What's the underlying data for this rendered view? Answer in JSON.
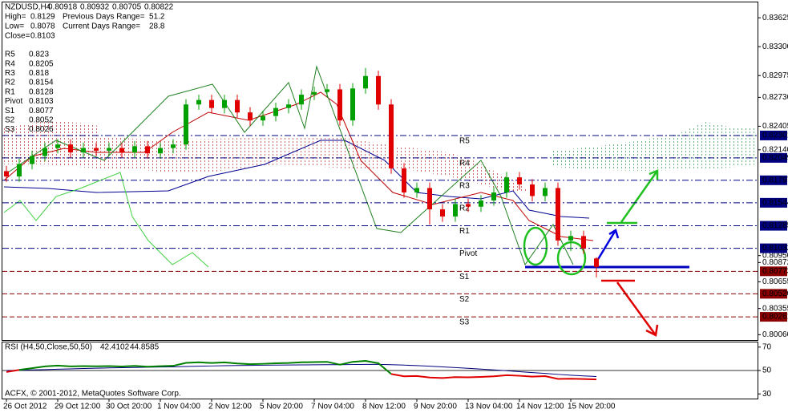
{
  "chart_data": {
    "type": "candlestick",
    "symbol": "NZDUSD,H4",
    "info": [
      {
        "label": "High=",
        "value": 0.8129
      },
      {
        "label": "Low=",
        "value": 0.8078
      },
      {
        "label": "Close=",
        "value": 0.8103
      }
    ],
    "ranges": [
      {
        "label": "Previous Days Range=",
        "value": 51.2
      },
      {
        "label": "Current Days Range=",
        "value": 28.8
      }
    ],
    "categories": [
      "26 Oct 2012",
      null,
      null,
      null,
      "29 Oct 12:00",
      null,
      null,
      null,
      "30 Oct 20:00",
      null,
      null,
      null,
      "1 Nov 04:00",
      null,
      null,
      null,
      "2 Nov 12:00",
      null,
      null,
      null,
      "5 Nov 20:00",
      null,
      null,
      null,
      "7 Nov 04:00",
      null,
      null,
      null,
      "8 Nov 12:00",
      null,
      null,
      null,
      "9 Nov 20:00",
      null,
      null,
      null,
      "13 Nov 04:00",
      null,
      null,
      null,
      "14 Nov 12:00",
      null,
      null,
      null,
      "15 Nov 20:00",
      null,
      null
    ],
    "open": [
      0.819,
      0.8184,
      0.8198,
      0.8207,
      0.8216,
      0.822,
      0.8211,
      0.8216,
      0.8213,
      0.8216,
      0.8211,
      0.8218,
      0.821,
      0.8216,
      0.822,
      0.8265,
      0.827,
      0.8261,
      0.827,
      0.8256,
      0.8247,
      0.8252,
      0.8261,
      0.8265,
      0.8276,
      0.8279,
      0.8282,
      0.8247,
      0.8283,
      0.8297,
      0.8265,
      0.8193,
      0.8166,
      0.8171,
      0.8147,
      0.8139,
      0.8153,
      0.815,
      0.8157,
      0.8166,
      0.8183,
      0.8175,
      0.8162,
      0.8171,
      0.8112,
      0.8117,
      0.80918
    ],
    "high": [
      0.8196,
      0.8204,
      0.8213,
      0.8222,
      0.8226,
      0.8226,
      0.8222,
      0.8222,
      0.8222,
      0.8222,
      0.8224,
      0.8224,
      0.8222,
      0.8226,
      0.8271,
      0.8276,
      0.8276,
      0.8276,
      0.8276,
      0.8262,
      0.8258,
      0.8267,
      0.8271,
      0.8282,
      0.8285,
      0.8288,
      0.8288,
      0.8289,
      0.8306,
      0.8303,
      0.8271,
      0.8199,
      0.8177,
      0.8177,
      0.8153,
      0.8159,
      0.8159,
      0.8163,
      0.8172,
      0.8189,
      0.8189,
      0.8181,
      0.8177,
      0.8177,
      0.8123,
      0.8123,
      0.80932
    ],
    "low": [
      0.8178,
      0.8178,
      0.8192,
      0.8201,
      0.821,
      0.8205,
      0.8205,
      0.8207,
      0.8207,
      0.8205,
      0.8205,
      0.8204,
      0.8204,
      0.821,
      0.8214,
      0.8259,
      0.8255,
      0.8255,
      0.825,
      0.8241,
      0.8241,
      0.8246,
      0.8255,
      0.8259,
      0.827,
      0.8273,
      0.8241,
      0.8241,
      0.8277,
      0.8259,
      0.8187,
      0.816,
      0.816,
      0.813,
      0.8133,
      0.8133,
      0.8144,
      0.8144,
      0.8151,
      0.816,
      0.8169,
      0.8156,
      0.8156,
      0.8106,
      0.81,
      0.8097,
      0.80705
    ],
    "close": [
      0.8184,
      0.8198,
      0.8207,
      0.8216,
      0.822,
      0.8211,
      0.8216,
      0.8213,
      0.8216,
      0.8211,
      0.8218,
      0.821,
      0.8216,
      0.822,
      0.8265,
      0.827,
      0.8261,
      0.827,
      0.8256,
      0.8247,
      0.8252,
      0.8261,
      0.8265,
      0.8276,
      0.8279,
      0.8282,
      0.8247,
      0.8283,
      0.8297,
      0.8265,
      0.8193,
      0.8166,
      0.8171,
      0.8147,
      0.8139,
      0.8153,
      0.815,
      0.8157,
      0.8166,
      0.8183,
      0.8175,
      0.8162,
      0.8171,
      0.8112,
      0.8117,
      0.8103,
      0.80822
    ],
    "up_color": "#00a000",
    "down_color": "#e00000",
    "ylim": [
      0.8,
      0.8378
    ],
    "yticks": [
      0.83625,
      {
        "value": 0.833,
        "label": "0.83300"
      },
      0.82975,
      {
        "value": 0.8273,
        "label": "0.82730"
      },
      0.82405,
      {
        "value": 0.8214,
        "label": "0.82140"
      },
      {
        "value": 0.8095,
        "label": "0.80950"
      },
      0.80872,
      0.80655,
      0.80355,
      {
        "value": 0.8006,
        "label": "0.80060"
      }
    ],
    "pivots": [
      {
        "name": "R5",
        "value": 0.823,
        "axis": 0.82301,
        "color": "#000080"
      },
      {
        "name": "R4",
        "value": 0.8205,
        "axis": 0.82049,
        "color": "#000080"
      },
      {
        "name": "R3",
        "value": 0.818,
        "axis": 0.81797,
        "color": "#000080"
      },
      {
        "name": "R2",
        "value": 0.8154,
        "axis": 0.81544,
        "color": "#000080"
      },
      {
        "name": "R1",
        "value": 0.8128,
        "axis": 0.81285,
        "color": "#000080"
      },
      {
        "name": "Pivot",
        "value": 0.8103,
        "axis": 0.81032,
        "color": "#000080"
      },
      {
        "name": "S1",
        "value": 0.8077,
        "axis": 0.80773,
        "color": "#8b0000"
      },
      {
        "name": "S2",
        "value": 0.8052,
        "axis": {
          "value": 0.8052,
          "label": "0.80520"
        },
        "color": "#8b0000"
      },
      {
        "name": "S3",
        "value": 0.8026,
        "axis": 0.80261,
        "color": "#8b0000"
      }
    ],
    "rsi": {
      "label": "RSI (H4,50,Close,50,50)",
      "level": 50,
      "ylim": [
        26,
        74
      ],
      "yticks": [
        70,
        50,
        30
      ],
      "above_color": "#008000",
      "below_color": "#e00000",
      "ma_color": "#000080",
      "values": [
        48.7,
        50.5,
        52,
        53.5,
        54.2,
        53.5,
        53.8,
        53.6,
        53.8,
        53.4,
        53.9,
        53.3,
        53.7,
        54,
        56.5,
        57,
        56.4,
        56.9,
        56,
        55.4,
        55.7,
        56.2,
        56.4,
        57,
        57.2,
        57.4,
        55,
        57.4,
        58.2,
        56.2,
        47,
        45,
        45.3,
        44,
        43.6,
        44.3,
        44.2,
        44.5,
        45,
        46,
        45.5,
        44.8,
        45.2,
        42.8,
        43,
        42.7,
        42.4102
      ],
      "ma": [
        50,
        50.2,
        50.5,
        50.8,
        51.1,
        51.4,
        51.7,
        52,
        52.2,
        52.4,
        52.6,
        52.8,
        53,
        53.1,
        53.4,
        53.7,
        53.9,
        54.1,
        54.3,
        54.4,
        54.5,
        54.6,
        54.7,
        54.8,
        54.9,
        55,
        55,
        55.1,
        55.2,
        55.2,
        55,
        54.6,
        54.2,
        53.7,
        53.1,
        52.5,
        51.9,
        51.2,
        50.5,
        49.8,
        49,
        48.2,
        47.5,
        46.7,
        46,
        45.4,
        44.8585
      ]
    },
    "copyright": "ACFX, © 2001-2012, MetaQuotes Software Corp."
  }
}
